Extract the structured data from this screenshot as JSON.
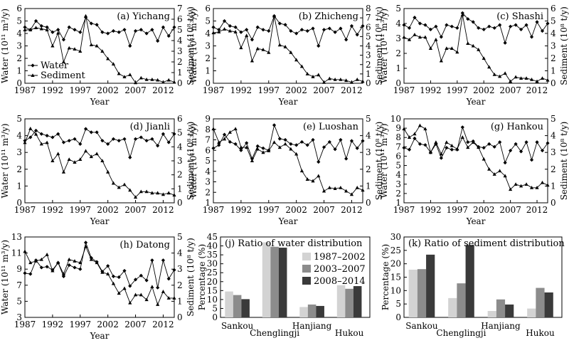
{
  "chart_data": [
    {
      "id": "a",
      "type": "line",
      "title": "(a) Yichang",
      "x": [
        1987,
        1988,
        1989,
        1990,
        1991,
        1992,
        1993,
        1994,
        1995,
        1996,
        1997,
        1998,
        1999,
        2000,
        2001,
        2002,
        2003,
        2004,
        2005,
        2006,
        2007,
        2008,
        2009,
        2010,
        2011,
        2012,
        2013,
        2014
      ],
      "xticks": [
        1987,
        1992,
        1997,
        2002,
        2007,
        2012
      ],
      "xlabel": "Year",
      "ylabel": "Water (10¹¹ m³/y)",
      "y2label": "Sediment (10⁸ t/y)",
      "ylim": [
        0,
        6
      ],
      "yticks": [
        0,
        1,
        2,
        3,
        4,
        5,
        6
      ],
      "y2lim": [
        0,
        7
      ],
      "y2ticks": [
        0,
        1,
        2,
        3,
        4,
        5,
        6,
        7
      ],
      "series": [
        {
          "name": "Water",
          "marker": "diamond",
          "axis": "left",
          "values": [
            4.5,
            4.3,
            5.0,
            4.6,
            4.5,
            4.1,
            4.3,
            3.5,
            4.5,
            4.3,
            4.1,
            5.3,
            4.8,
            4.7,
            4.1,
            4.0,
            4.2,
            4.1,
            4.3,
            3.0,
            4.2,
            4.3,
            4.0,
            4.3,
            3.4,
            4.5,
            3.8,
            4.5
          ]
        },
        {
          "name": "Sediment",
          "marker": "triangle",
          "axis": "right",
          "values": [
            5.0,
            5.0,
            5.2,
            5.1,
            5.0,
            3.5,
            4.7,
            2.0,
            3.3,
            3.2,
            3.0,
            6.3,
            3.6,
            3.5,
            3.0,
            2.3,
            1.8,
            0.9,
            0.6,
            0.8,
            0.05,
            0.5,
            0.35,
            0.35,
            0.3,
            0.1,
            0.3,
            0.1
          ]
        }
      ]
    },
    {
      "id": "b",
      "type": "line",
      "title": "(b) Zhicheng",
      "x": [
        1987,
        1988,
        1989,
        1990,
        1991,
        1992,
        1993,
        1994,
        1995,
        1996,
        1997,
        1998,
        1999,
        2000,
        2001,
        2002,
        2003,
        2004,
        2005,
        2006,
        2007,
        2008,
        2009,
        2010,
        2011,
        2012,
        2013,
        2014
      ],
      "xticks": [
        1987,
        1992,
        1997,
        2002,
        2007,
        2012
      ],
      "xlabel": "Year",
      "ylabel": "Water (10¹¹ m³/y)",
      "y2label": "Sediment (10⁸ t/y)",
      "ylim": [
        0,
        6
      ],
      "yticks": [
        0,
        1,
        2,
        3,
        4,
        5,
        6
      ],
      "y2lim": [
        0,
        8
      ],
      "y2ticks": [
        0,
        1,
        2,
        3,
        4,
        5,
        6,
        7,
        8
      ],
      "series": [
        {
          "name": "Water",
          "marker": "diamond",
          "axis": "left",
          "values": [
            4.5,
            4.3,
            5.0,
            4.6,
            4.5,
            4.1,
            4.3,
            3.5,
            4.5,
            4.3,
            4.2,
            5.4,
            4.8,
            4.7,
            4.2,
            4.0,
            4.3,
            4.2,
            4.4,
            3.0,
            4.3,
            4.4,
            4.1,
            4.4,
            3.5,
            4.6,
            3.9,
            4.6
          ]
        },
        {
          "name": "Sediment",
          "marker": "triangle",
          "axis": "right",
          "values": [
            5.4,
            5.5,
            5.8,
            5.6,
            5.5,
            3.8,
            5.1,
            2.4,
            3.7,
            3.6,
            3.3,
            7.2,
            4.1,
            3.9,
            3.3,
            2.5,
            1.8,
            1.0,
            0.7,
            0.9,
            0.1,
            0.5,
            0.4,
            0.4,
            0.3,
            0.1,
            0.4,
            0.2
          ]
        }
      ]
    },
    {
      "id": "c",
      "type": "line",
      "title": "(c) Shashi",
      "x": [
        1987,
        1988,
        1989,
        1990,
        1991,
        1992,
        1993,
        1994,
        1995,
        1996,
        1997,
        1998,
        1999,
        2000,
        2001,
        2002,
        2003,
        2004,
        2005,
        2006,
        2007,
        2008,
        2009,
        2010,
        2011,
        2012,
        2013,
        2014
      ],
      "xticks": [
        1987,
        1992,
        1997,
        2002,
        2007,
        2012
      ],
      "xlabel": "Year",
      "ylabel": "Water (10¹¹ m³/y)",
      "y2label": "Sediment (10⁸ t/y)",
      "ylim": [
        0,
        5
      ],
      "yticks": [
        0,
        1,
        2,
        3,
        4,
        5
      ],
      "y2lim": [
        0,
        6
      ],
      "y2ticks": [
        0,
        1,
        2,
        3,
        4,
        5,
        6
      ],
      "series": [
        {
          "name": "Water",
          "marker": "diamond",
          "axis": "left",
          "values": [
            3.9,
            3.7,
            4.4,
            4.0,
            3.9,
            3.6,
            3.8,
            3.1,
            3.9,
            3.8,
            3.7,
            4.7,
            4.3,
            4.1,
            3.7,
            3.6,
            3.8,
            3.7,
            3.9,
            2.7,
            3.8,
            3.9,
            3.6,
            3.9,
            3.1,
            4.1,
            3.5,
            4.0
          ]
        },
        {
          "name": "Sediment",
          "marker": "triangle",
          "axis": "right",
          "values": [
            3.7,
            3.5,
            3.9,
            3.7,
            3.7,
            2.8,
            3.5,
            1.8,
            2.8,
            2.8,
            2.5,
            5.5,
            3.2,
            3.0,
            2.7,
            2.0,
            1.3,
            0.7,
            0.55,
            0.8,
            0.15,
            0.5,
            0.4,
            0.4,
            0.3,
            0.15,
            0.4,
            0.25
          ]
        }
      ]
    },
    {
      "id": "d",
      "type": "line",
      "title": "(d) Jianli",
      "x": [
        1987,
        1988,
        1989,
        1990,
        1991,
        1992,
        1993,
        1994,
        1995,
        1996,
        1997,
        1998,
        1999,
        2000,
        2001,
        2002,
        2003,
        2004,
        2005,
        2006,
        2007,
        2008,
        2009,
        2010,
        2011,
        2012,
        2013,
        2014
      ],
      "xticks": [
        1987,
        1992,
        1997,
        2002,
        2007,
        2012
      ],
      "xlabel": "Year",
      "ylabel": "Water (10¹¹ m³/y)",
      "y2label": "Sediment (10⁸ t/y)",
      "ylim": [
        0,
        5
      ],
      "yticks": [
        0,
        1,
        2,
        3,
        4,
        5
      ],
      "y2lim": [
        0,
        6
      ],
      "y2ticks": [
        0,
        1,
        2,
        3,
        4,
        5,
        6
      ],
      "series": [
        {
          "name": "Water",
          "marker": "diamond",
          "axis": "left",
          "values": [
            3.7,
            3.9,
            4.3,
            4.1,
            4.0,
            3.9,
            4.1,
            3.6,
            3.7,
            3.8,
            3.5,
            4.4,
            4.2,
            4.2,
            3.7,
            3.5,
            3.8,
            3.7,
            3.8,
            2.7,
            3.8,
            3.9,
            3.7,
            3.8,
            3.4,
            4.1,
            3.6,
            4.1
          ]
        },
        {
          "name": "Sediment",
          "marker": "triangle",
          "axis": "right",
          "values": [
            4.3,
            5.3,
            4.9,
            4.2,
            4.3,
            3.0,
            3.5,
            2.2,
            3.1,
            2.9,
            3.1,
            3.7,
            3.3,
            3.5,
            3.0,
            2.2,
            1.4,
            1.1,
            1.3,
            0.9,
            0.4,
            0.8,
            0.8,
            0.7,
            0.7,
            0.6,
            0.7,
            0.55
          ]
        }
      ]
    },
    {
      "id": "e",
      "type": "line",
      "title": "(e) Luoshan",
      "x": [
        1987,
        1988,
        1989,
        1990,
        1991,
        1992,
        1993,
        1994,
        1995,
        1996,
        1997,
        1998,
        1999,
        2000,
        2001,
        2002,
        2003,
        2004,
        2005,
        2006,
        2007,
        2008,
        2009,
        2010,
        2011,
        2012,
        2013,
        2014
      ],
      "xticks": [
        1987,
        1992,
        1997,
        2002,
        2007,
        2012
      ],
      "xlabel": "Year",
      "ylabel": "Water (10¹¹ m³/y)",
      "y2label": "Sediment (10⁸ t/y)",
      "ylim": [
        1,
        9
      ],
      "yticks": [
        1,
        2,
        3,
        4,
        5,
        6,
        7,
        8,
        9
      ],
      "y2lim": [
        0,
        5
      ],
      "y2ticks": [
        0,
        1,
        2,
        3,
        4,
        5
      ],
      "series": [
        {
          "name": "Water",
          "marker": "diamond",
          "axis": "left",
          "values": [
            6.2,
            6.5,
            7.5,
            6.8,
            6.6,
            6.0,
            6.7,
            5.2,
            6.4,
            6.2,
            6.0,
            8.4,
            7.1,
            7.0,
            6.6,
            6.5,
            6.8,
            6.5,
            7.0,
            4.9,
            6.3,
            6.8,
            6.1,
            7.0,
            5.2,
            6.9,
            6.2,
            6.9
          ]
        },
        {
          "name": "Sediment",
          "marker": "triangle",
          "axis": "right",
          "values": [
            4.4,
            3.6,
            3.8,
            4.2,
            4.4,
            3.3,
            3.3,
            2.5,
            3.2,
            3.0,
            3.1,
            3.6,
            3.3,
            3.5,
            3.2,
            2.9,
            1.9,
            1.4,
            1.3,
            1.6,
            0.7,
            0.9,
            0.85,
            0.9,
            0.7,
            0.5,
            0.9,
            0.75
          ]
        }
      ]
    },
    {
      "id": "g",
      "type": "line",
      "title": "(g) Hankou",
      "x": [
        1987,
        1988,
        1989,
        1990,
        1991,
        1992,
        1993,
        1994,
        1995,
        1996,
        1997,
        1998,
        1999,
        2000,
        2001,
        2002,
        2003,
        2004,
        2005,
        2006,
        2007,
        2008,
        2009,
        2010,
        2011,
        2012,
        2013,
        2014
      ],
      "xticks": [
        1987,
        1992,
        1997,
        2002,
        2007,
        2012
      ],
      "xlabel": "Year",
      "ylabel": "Water (10¹¹ m³/y)",
      "y2label": "Sediment (10⁸ t/y)",
      "ylim": [
        1,
        10
      ],
      "yticks": [
        1,
        2,
        3,
        4,
        5,
        6,
        7,
        8,
        9,
        10
      ],
      "y2lim": [
        0,
        5
      ],
      "y2ticks": [
        0,
        1,
        2,
        3,
        4,
        5
      ],
      "series": [
        {
          "name": "Water",
          "marker": "diamond",
          "axis": "left",
          "values": [
            6.9,
            6.7,
            7.9,
            7.3,
            7.2,
            6.4,
            7.3,
            5.8,
            6.9,
            6.7,
            6.7,
            9.1,
            7.5,
            7.6,
            7.0,
            6.9,
            7.3,
            7.0,
            7.5,
            5.3,
            6.6,
            7.3,
            6.5,
            7.5,
            5.6,
            7.5,
            6.6,
            7.4
          ]
        },
        {
          "name": "Sediment",
          "marker": "triangle",
          "axis": "right",
          "values": [
            4.4,
            3.9,
            4.1,
            4.6,
            4.4,
            3.0,
            3.6,
            2.9,
            3.6,
            3.4,
            3.2,
            3.9,
            3.3,
            3.6,
            3.3,
            2.6,
            2.0,
            1.7,
            1.9,
            1.6,
            0.8,
            1.1,
            1.0,
            1.1,
            0.9,
            0.9,
            1.2,
            1.05
          ]
        }
      ]
    },
    {
      "id": "h",
      "type": "line",
      "title": "(h) Datong",
      "x": [
        1987,
        1988,
        1989,
        1990,
        1991,
        1992,
        1993,
        1994,
        1995,
        1996,
        1997,
        1998,
        1999,
        2000,
        2001,
        2002,
        2003,
        2004,
        2005,
        2006,
        2007,
        2008,
        2009,
        2010,
        2011,
        2012,
        2013,
        2014
      ],
      "xticks": [
        1987,
        1992,
        1997,
        2002,
        2007,
        2012
      ],
      "xlabel": "Year",
      "ylabel": "Water (10¹¹ m³/y)",
      "y2label": "Sediment (10⁸ t/y)",
      "ylim": [
        3,
        13
      ],
      "yticks": [
        3,
        5,
        7,
        9,
        11,
        13
      ],
      "y2lim": [
        0,
        5
      ],
      "y2ticks": [
        0,
        1,
        2,
        3,
        4,
        5
      ],
      "series": [
        {
          "name": "Water",
          "marker": "diamond",
          "axis": "left",
          "values": [
            8.5,
            8.4,
            10.1,
            9.2,
            9.3,
            8.9,
            9.8,
            8.1,
            9.5,
            9.2,
            9.0,
            12.3,
            10.4,
            9.9,
            8.7,
            9.4,
            8.1,
            8.0,
            8.8,
            6.9,
            7.7,
            8.2,
            7.6,
            10.1,
            6.7,
            10.1,
            7.8,
            8.9
          ]
        },
        {
          "name": "Sediment",
          "marker": "triangle",
          "axis": "right",
          "values": [
            4.1,
            3.4,
            3.5,
            3.6,
            3.9,
            2.9,
            3.4,
            2.7,
            3.6,
            3.5,
            3.4,
            4.4,
            3.6,
            3.4,
            2.8,
            2.7,
            2.1,
            1.5,
            1.8,
            0.9,
            1.4,
            1.4,
            1.1,
            1.9,
            0.8,
            1.6,
            1.2,
            1.2
          ]
        }
      ]
    },
    {
      "id": "j",
      "type": "bar",
      "title": "(j) Ratio of water distribution",
      "categories": [
        "Sankou",
        "Chenglingji",
        "Hanjiang",
        "Hukou"
      ],
      "ylabel": "Percentage (%)",
      "ylim": [
        0,
        45
      ],
      "yticks": [
        0,
        5,
        10,
        15,
        20,
        25,
        30,
        35,
        40,
        45
      ],
      "series": [
        {
          "name": "1987–2002",
          "values": [
            14.5,
            42.0,
            5.8,
            18.0
          ]
        },
        {
          "name": "2003–2007",
          "values": [
            12.5,
            39.5,
            7.2,
            16.0
          ]
        },
        {
          "name": "2008–2014",
          "values": [
            10.2,
            39.0,
            6.4,
            17.5
          ]
        }
      ]
    },
    {
      "id": "k",
      "type": "bar",
      "title": "(k) Ratio of sediment distribution",
      "categories": [
        "Sankou",
        "Chenglingji",
        "Hanjiang",
        "Hukou"
      ],
      "ylabel": "Percentage (%)",
      "ylim": [
        0,
        30
      ],
      "yticks": [
        0,
        5,
        10,
        15,
        20,
        25,
        30
      ],
      "series": [
        {
          "name": "1987–2002",
          "values": [
            17.8,
            7.2,
            2.4,
            3.3
          ]
        },
        {
          "name": "2003–2007",
          "values": [
            18.0,
            12.7,
            6.7,
            11.0
          ]
        },
        {
          "name": "2008–2014",
          "values": [
            23.4,
            27.0,
            4.8,
            9.3
          ]
        }
      ]
    }
  ],
  "legend": {
    "water": "Water",
    "sediment": "Sediment"
  },
  "bar_colors": [
    "#d3d3d3",
    "#8c8c8c",
    "#3a3a3a"
  ]
}
